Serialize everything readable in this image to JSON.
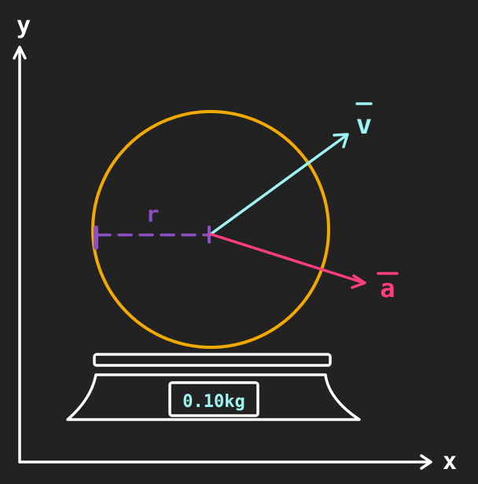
{
  "axes": {
    "x_label": "x",
    "y_label": "y"
  },
  "circle": {
    "radius_label": "r"
  },
  "vectors": {
    "velocity_label": "v",
    "acceleration_label": "a"
  },
  "scale": {
    "display_reading": "0.10kg"
  },
  "colors": {
    "background": "#222222",
    "axes": "#ffffff",
    "circle": "#f2a900",
    "radius": "#8e4fc4",
    "velocity": "#9ff3f3",
    "acceleration": "#ff3d7f",
    "scale": "#ffffff",
    "display_text": "#9ff3f3"
  }
}
